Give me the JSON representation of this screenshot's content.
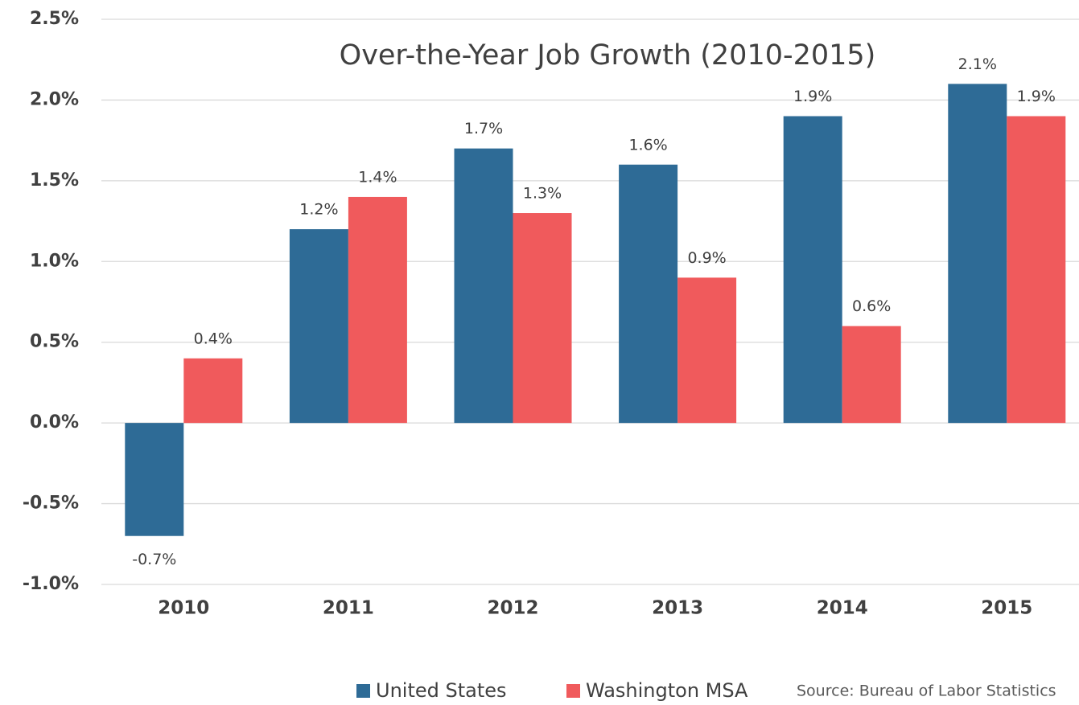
{
  "chart_data": {
    "type": "bar",
    "title": "Over-the-Year Job Growth (2010-2015)",
    "source": "Source: Bureau of Labor Statistics",
    "categories": [
      "2010",
      "2011",
      "2012",
      "2013",
      "2014",
      "2015"
    ],
    "series": [
      {
        "name": "United States",
        "color": "#2e6b96",
        "values": [
          -0.7,
          1.2,
          1.7,
          1.6,
          1.9,
          2.1
        ],
        "value_labels": [
          "-0.7%",
          "1.2%",
          "1.7%",
          "1.6%",
          "1.9%",
          "2.1%"
        ]
      },
      {
        "name": "Washington MSA",
        "color": "#f05a5c",
        "values": [
          0.4,
          1.4,
          1.3,
          0.9,
          0.6,
          1.9
        ],
        "value_labels": [
          "0.4%",
          "1.4%",
          "1.3%",
          "0.9%",
          "0.6%",
          "1.9%"
        ]
      }
    ],
    "ylim": [
      -1.0,
      2.5
    ],
    "yticks": [
      {
        "value": -1.0,
        "label": "-1.0%"
      },
      {
        "value": -0.5,
        "label": "-0.5%"
      },
      {
        "value": 0.0,
        "label": "0.0%"
      },
      {
        "value": 0.5,
        "label": "0.5%"
      },
      {
        "value": 1.0,
        "label": "1.0%"
      },
      {
        "value": 1.5,
        "label": "1.5%"
      },
      {
        "value": 2.0,
        "label": "2.0%"
      },
      {
        "value": 2.5,
        "label": "2.5%"
      }
    ],
    "grid": true,
    "legend": "bottom"
  }
}
